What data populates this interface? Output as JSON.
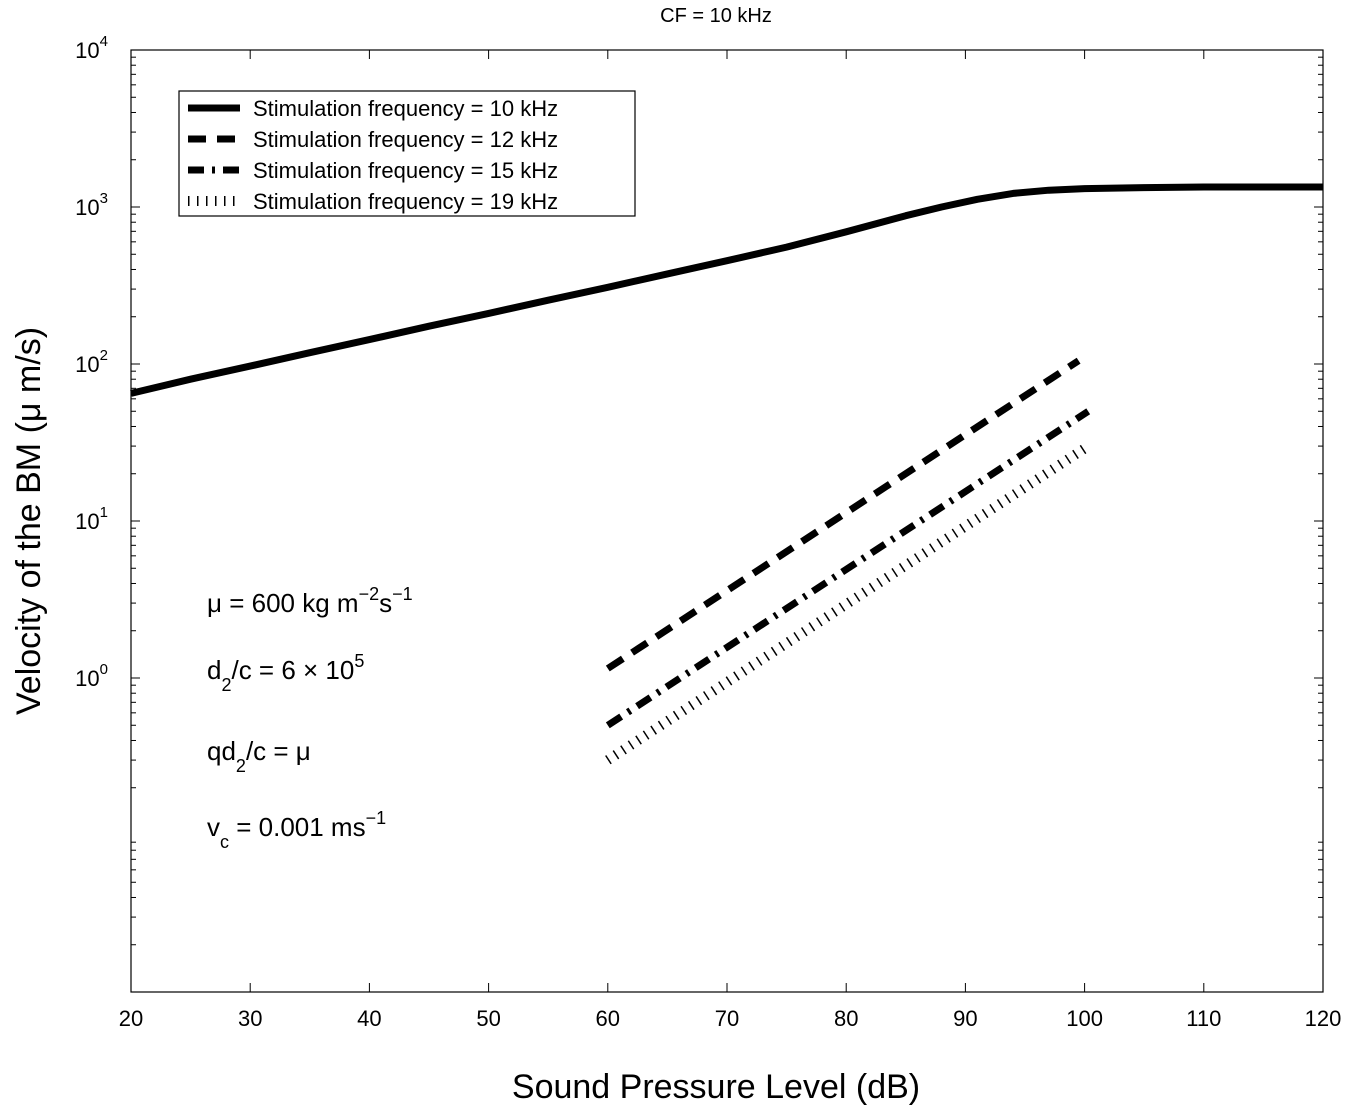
{
  "chart_data": {
    "type": "line",
    "title": "CF = 10 kHz",
    "xlabel": "Sound Pressure Level (dB)",
    "ylabel": "Velocity of the BM (μ m/s)",
    "xlim": [
      20,
      120
    ],
    "ylim": [
      0.01,
      10000
    ],
    "yscale": "log",
    "grid": false,
    "legend_position": "top-left",
    "x_ticks": [
      20,
      30,
      40,
      50,
      60,
      70,
      80,
      90,
      100,
      110,
      120
    ],
    "y_ticks": [
      {
        "base": "10",
        "exp": "0",
        "value": 1
      },
      {
        "base": "10",
        "exp": "1",
        "value": 10
      },
      {
        "base": "10",
        "exp": "2",
        "value": 100
      },
      {
        "base": "10",
        "exp": "3",
        "value": 1000
      },
      {
        "base": "10",
        "exp": "4",
        "value": 10000
      }
    ],
    "series": [
      {
        "name": "Stimulation frequency = 10 kHz",
        "style": "solid",
        "color": "#000000",
        "x": [
          20,
          25,
          30,
          35,
          40,
          45,
          50,
          55,
          60,
          65,
          70,
          75,
          80,
          85,
          88,
          91,
          94,
          97,
          100,
          105,
          110,
          115,
          120
        ],
        "y": [
          65,
          80,
          97,
          118,
          143,
          174,
          210,
          255,
          308,
          375,
          455,
          555,
          695,
          880,
          1000,
          1120,
          1220,
          1280,
          1310,
          1330,
          1340,
          1340,
          1340
        ]
      },
      {
        "name": "Stimulation frequency = 12 kHz",
        "style": "dashed",
        "color": "#000000",
        "x": [
          60,
          99.5
        ],
        "y": [
          1.15,
          105
        ]
      },
      {
        "name": "Stimulation frequency = 15 kHz",
        "style": "dashdot",
        "color": "#000000",
        "x": [
          60,
          100.3
        ],
        "y": [
          0.5,
          50
        ]
      },
      {
        "name": "Stimulation frequency = 19 kHz",
        "style": "dotted",
        "color": "#000000",
        "x": [
          60,
          100.3
        ],
        "y": [
          0.3,
          30
        ]
      }
    ],
    "annotations": [
      {
        "main": "μ = 600 kg m",
        "sup1": "−2",
        "mid": "s",
        "sup2": "−1"
      },
      {
        "main": "d",
        "sub": "2",
        "rest": "/c = 6 × 10",
        "sup": "5"
      },
      {
        "main": "qd",
        "sub": "2",
        "rest": "/c = μ"
      },
      {
        "main": "v",
        "sub": "c",
        "rest": " = 0.001 ms",
        "sup": "−1"
      }
    ]
  }
}
